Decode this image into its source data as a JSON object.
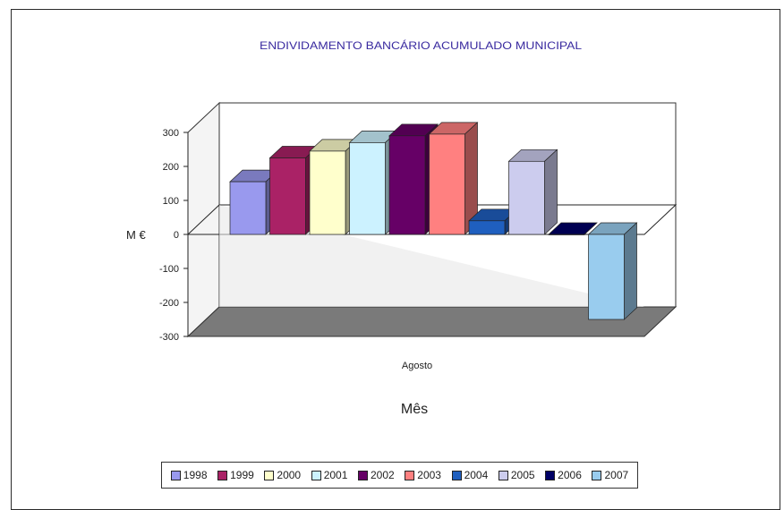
{
  "chart_data": {
    "type": "bar",
    "title": "ENDIVIDAMENTO BANCÁRIO ACUMULADO MUNICIPAL",
    "xlabel": "Mês",
    "ylabel": "M €",
    "categories": [
      "Agosto"
    ],
    "ylim": [
      -300,
      300
    ],
    "yticks": [
      "300",
      "200",
      "100",
      "0",
      "-100",
      "-200",
      "-300"
    ],
    "legend_position": "bottom",
    "series": [
      {
        "name": "1998",
        "values": [
          155
        ],
        "color": "#9999ee"
      },
      {
        "name": "1999",
        "values": [
          225
        ],
        "color": "#aa2266"
      },
      {
        "name": "2000",
        "values": [
          245
        ],
        "color": "#ffffcc"
      },
      {
        "name": "2001",
        "values": [
          270
        ],
        "color": "#ccf2ff"
      },
      {
        "name": "2002",
        "values": [
          290
        ],
        "color": "#660066"
      },
      {
        "name": "2003",
        "values": [
          295
        ],
        "color": "#ff8080"
      },
      {
        "name": "2004",
        "values": [
          40
        ],
        "color": "#1f5fbf"
      },
      {
        "name": "2005",
        "values": [
          215
        ],
        "color": "#ccccee"
      },
      {
        "name": "2006",
        "values": [
          0
        ],
        "color": "#000066"
      },
      {
        "name": "2007",
        "values": [
          -250
        ],
        "color": "#99ccee"
      }
    ]
  }
}
